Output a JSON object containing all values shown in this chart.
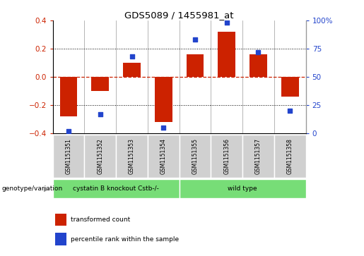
{
  "title": "GDS5089 / 1455981_at",
  "samples": [
    "GSM1151351",
    "GSM1151352",
    "GSM1151353",
    "GSM1151354",
    "GSM1151355",
    "GSM1151356",
    "GSM1151357",
    "GSM1151358"
  ],
  "red_bars": [
    -0.28,
    -0.1,
    0.1,
    -0.32,
    0.16,
    0.32,
    0.16,
    -0.14
  ],
  "blue_dots": [
    2,
    17,
    68,
    5,
    83,
    98,
    72,
    20
  ],
  "ylim": [
    -0.4,
    0.4
  ],
  "yticks_left": [
    -0.4,
    -0.2,
    0.0,
    0.2,
    0.4
  ],
  "yticks_right": [
    0,
    25,
    50,
    75,
    100
  ],
  "bar_color": "#cc2200",
  "dot_color": "#2244cc",
  "zero_line_color": "#cc2200",
  "grid_color": "#000000",
  "groups": [
    {
      "label": "cystatin B knockout Cstb-/-",
      "start": 0,
      "end": 4,
      "color": "#77dd77"
    },
    {
      "label": "wild type",
      "start": 4,
      "end": 8,
      "color": "#77dd77"
    }
  ],
  "group_row_label": "genotype/variation",
  "legend": [
    {
      "label": "transformed count",
      "color": "#cc2200"
    },
    {
      "label": "percentile rank within the sample",
      "color": "#2244cc"
    }
  ],
  "background_color": "#ffffff"
}
